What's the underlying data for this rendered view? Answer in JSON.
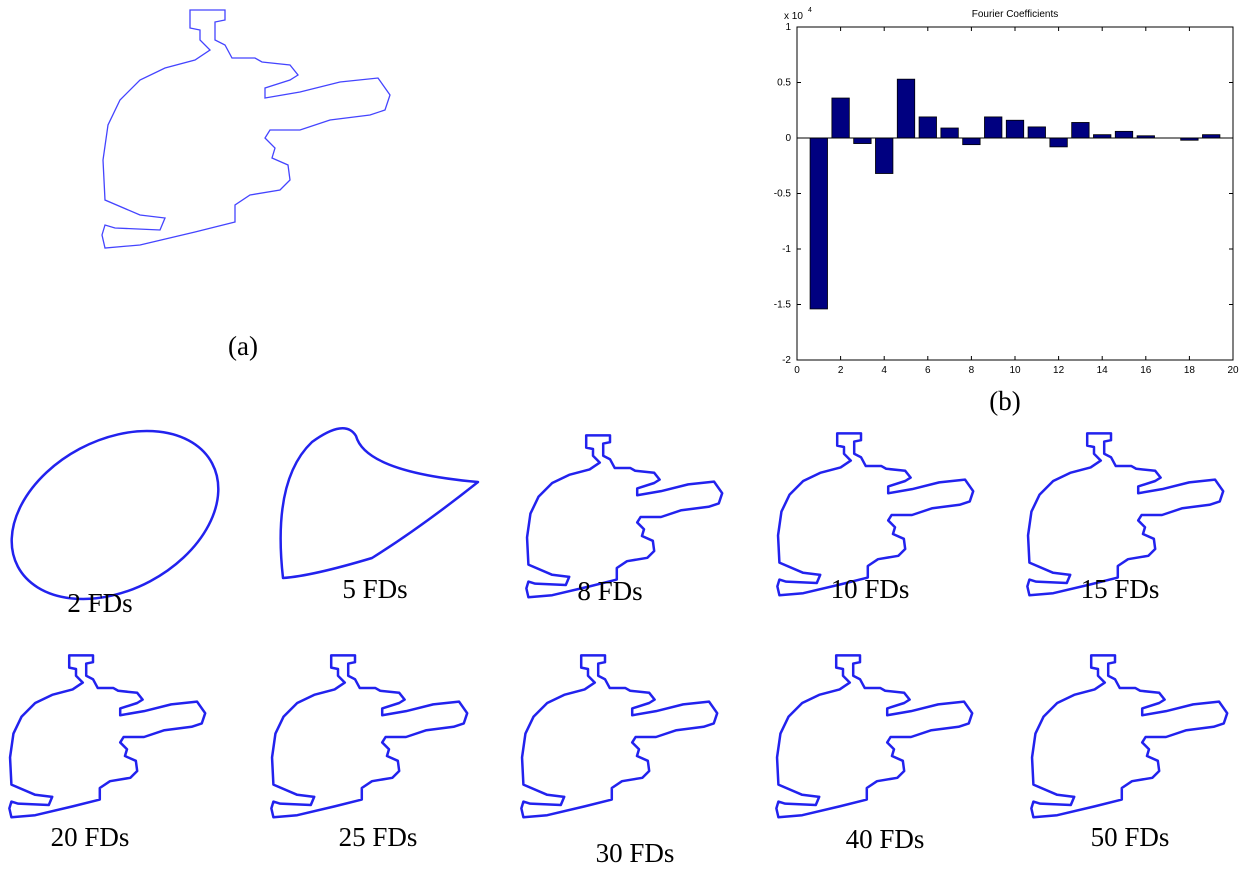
{
  "panels": {
    "a": "(a)",
    "b": "(b)"
  },
  "chart_data": {
    "type": "bar",
    "title": "Fourier Coefficients",
    "y_multiplier_base": "x 10",
    "y_multiplier_exponent": "4",
    "x": [
      1,
      2,
      3,
      4,
      5,
      6,
      7,
      8,
      9,
      10,
      11,
      12,
      13,
      14,
      15,
      16,
      17,
      18,
      19
    ],
    "values": [
      -1.54,
      0.36,
      -0.05,
      -0.32,
      0.53,
      0.19,
      0.09,
      -0.06,
      0.19,
      0.16,
      0.1,
      -0.08,
      0.14,
      0.03,
      0.06,
      0.02,
      0,
      -0.02,
      0.03
    ],
    "color": "#000080",
    "xlim": [
      0,
      20
    ],
    "xticks": [
      0,
      2,
      4,
      6,
      8,
      10,
      12,
      14,
      16,
      18,
      20
    ],
    "ylim": [
      -2,
      1
    ],
    "yticks": [
      -2,
      -1.5,
      -1,
      -0.5,
      0,
      0.5,
      1
    ]
  },
  "reconstructions": [
    "2 FDs",
    "5 FDs",
    "8 FDs",
    "10 FDs",
    "15 FDs",
    "20 FDs",
    "25 FDs",
    "30 FDs",
    "40 FDs",
    "50 FDs"
  ]
}
